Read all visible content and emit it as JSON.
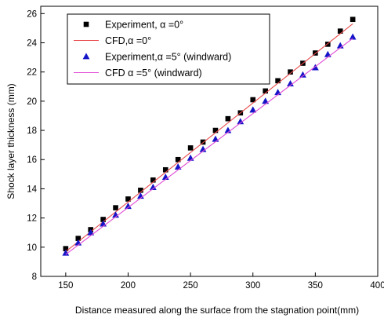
{
  "chart_data": {
    "type": "scatter",
    "xlabel": "Distance measured along the surface from the stagnation point(mm)",
    "ylabel": "Shock layer thickness (mm)",
    "xlim": [
      130,
      400
    ],
    "ylim": [
      8,
      26.5
    ],
    "xticks": [
      150,
      200,
      250,
      300,
      350,
      400
    ],
    "yticks": [
      8,
      10,
      12,
      14,
      16,
      18,
      20,
      22,
      24,
      26
    ],
    "grid": false,
    "legend_position": "top-left",
    "series": [
      {
        "name": "Experiment, α =0°",
        "kind": "marker",
        "marker": "square",
        "color": "#000000",
        "x": [
          150,
          160,
          170,
          180,
          190,
          200,
          210,
          220,
          230,
          240,
          250,
          260,
          270,
          280,
          290,
          300,
          310,
          320,
          330,
          340,
          350,
          360,
          370,
          380
        ],
        "y": [
          9.9,
          10.6,
          11.2,
          11.9,
          12.7,
          13.3,
          13.9,
          14.6,
          15.3,
          16.0,
          16.8,
          17.2,
          18.0,
          18.8,
          19.2,
          20.1,
          20.7,
          21.4,
          22.0,
          22.6,
          23.3,
          23.9,
          24.8,
          25.6
        ]
      },
      {
        "name": "CFD,α =0°",
        "kind": "line",
        "color": "#e8494b",
        "x": [
          150,
          380
        ],
        "y": [
          9.7,
          25.3
        ]
      },
      {
        "name": "Experiment,α =5° (windward)",
        "kind": "marker",
        "marker": "triangle",
        "color": "#1515c8",
        "x": [
          150,
          160,
          170,
          180,
          190,
          200,
          210,
          220,
          230,
          240,
          250,
          260,
          270,
          280,
          290,
          300,
          310,
          320,
          330,
          340,
          350,
          360,
          370,
          380
        ],
        "y": [
          9.6,
          10.3,
          11.0,
          11.6,
          12.2,
          12.8,
          13.5,
          14.1,
          14.8,
          15.5,
          16.1,
          16.7,
          17.4,
          18.0,
          18.6,
          19.4,
          20.0,
          20.6,
          21.2,
          21.8,
          22.3,
          23.2,
          23.8,
          24.4
        ]
      },
      {
        "name": "CFD α =5° (windward)",
        "kind": "line",
        "color": "#e04ad6",
        "x": [
          150,
          380
        ],
        "y": [
          9.5,
          24.3
        ]
      }
    ]
  }
}
